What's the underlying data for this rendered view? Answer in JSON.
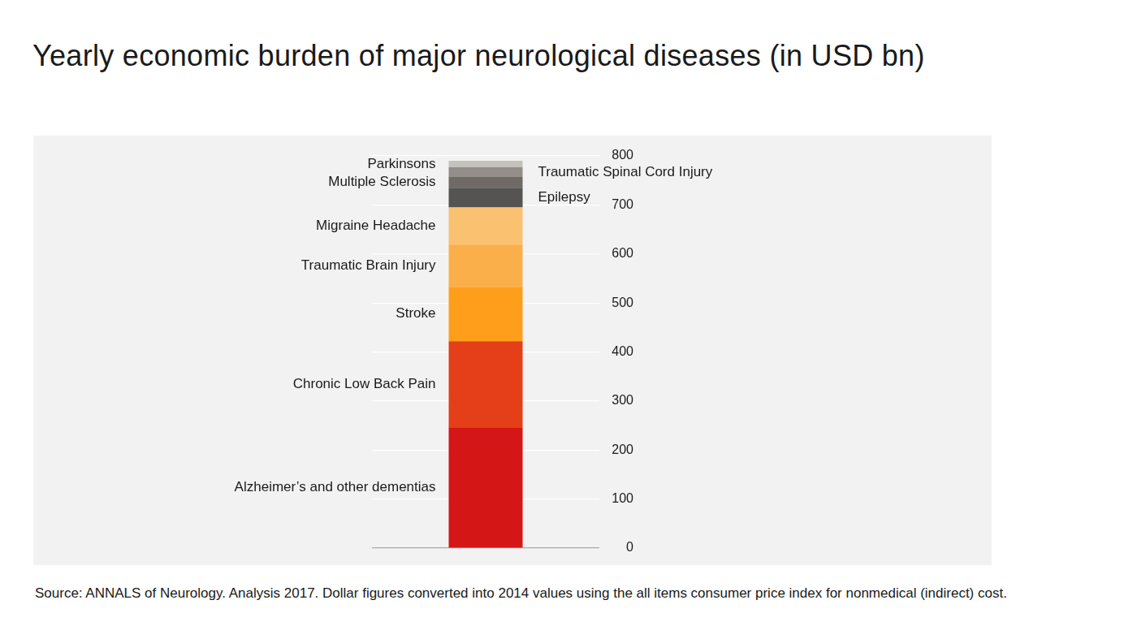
{
  "chart_data": {
    "type": "bar",
    "title": "Yearly economic burden of major neurological diseases (in USD bn)",
    "source": "Source: ANNALS of Neurology. Analysis 2017. Dollar figures converted into 2014 values using the all items consumer price index for nonmedical (indirect) cost.",
    "stacked": true,
    "categories": [
      null
    ],
    "series": [
      {
        "name": "Alzheimer’s and other dementias",
        "color": "#d41616",
        "values": [
          245
        ]
      },
      {
        "name": "Chronic Low Back Pain",
        "color": "#e43f18",
        "values": [
          177
        ]
      },
      {
        "name": "Stroke",
        "color": "#ff9e1b",
        "values": [
          111
        ]
      },
      {
        "name": "Traumatic Brain Injury",
        "color": "#fbaf4a",
        "values": [
          86
        ]
      },
      {
        "name": "Migraine Headache",
        "color": "#f9c170",
        "values": [
          76
        ]
      },
      {
        "name": "Epilepsy",
        "color": "#555452",
        "values": [
          40
        ]
      },
      {
        "name": "Multiple Sclerosis",
        "color": "#6f6a66",
        "values": [
          22
        ]
      },
      {
        "name": "Traumatic Spinal Cord Injury",
        "color": "#938e8a",
        "values": [
          20
        ]
      },
      {
        "name": "Parkinsons",
        "color": "#c5c2bc",
        "values": [
          13
        ]
      }
    ],
    "ylim": [
      0,
      800
    ],
    "yticks": [
      0,
      100,
      200,
      300,
      400,
      500,
      600,
      700,
      800
    ],
    "grid": true,
    "tick_labels": "y"
  }
}
